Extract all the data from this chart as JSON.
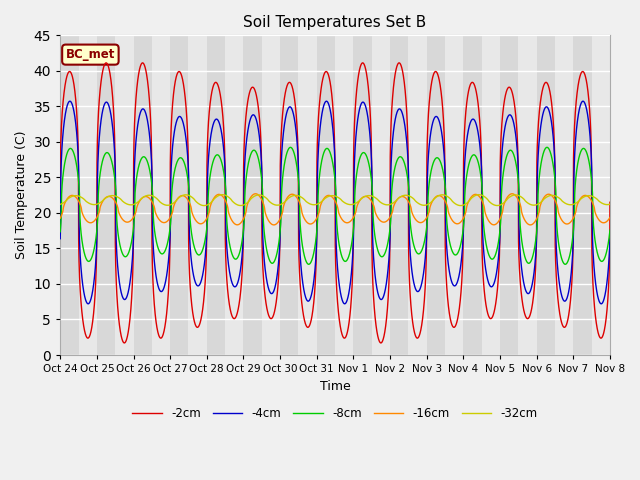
{
  "title": "Soil Temperatures Set B",
  "xlabel": "Time",
  "ylabel": "Soil Temperature (C)",
  "ylim": [
    0,
    45
  ],
  "duration_days": 15,
  "annotation": "BC_met",
  "background_color": "#f0f0f0",
  "plot_bg_color": "#e8e8e8",
  "grid_color": "#ffffff",
  "series": [
    {
      "label": "-2cm",
      "color": "#dd0000",
      "amplitude": 18.0,
      "mean": 21.5,
      "phase_shift": 0.0,
      "amp_decay": 0.0
    },
    {
      "label": "-4cm",
      "color": "#0000cc",
      "amplitude": 13.0,
      "mean": 21.5,
      "phase_shift": 0.08,
      "amp_decay": 0.0
    },
    {
      "label": "-8cm",
      "color": "#00cc00",
      "amplitude": 7.5,
      "mean": 21.0,
      "phase_shift": 0.2,
      "amp_decay": 0.0
    },
    {
      "label": "-16cm",
      "color": "#ff8800",
      "amplitude": 2.0,
      "mean": 20.5,
      "phase_shift": 0.5,
      "amp_decay": 0.0
    },
    {
      "label": "-32cm",
      "color": "#cccc00",
      "amplitude": 0.7,
      "mean": 21.8,
      "phase_shift": 1.1,
      "amp_decay": 0.0
    }
  ],
  "num_points": 4320,
  "tick_labels": [
    "Oct 24",
    "Oct 25",
    "Oct 26",
    "Oct 27",
    "Oct 28",
    "Oct 29",
    "Oct 30",
    "Oct 31",
    "Nov 1",
    "Nov 2",
    "Nov 3",
    "Nov 4",
    "Nov 5",
    "Nov 6",
    "Nov 7",
    "Nov 8"
  ],
  "yticks": [
    0,
    5,
    10,
    15,
    20,
    25,
    30,
    35,
    40,
    45
  ]
}
